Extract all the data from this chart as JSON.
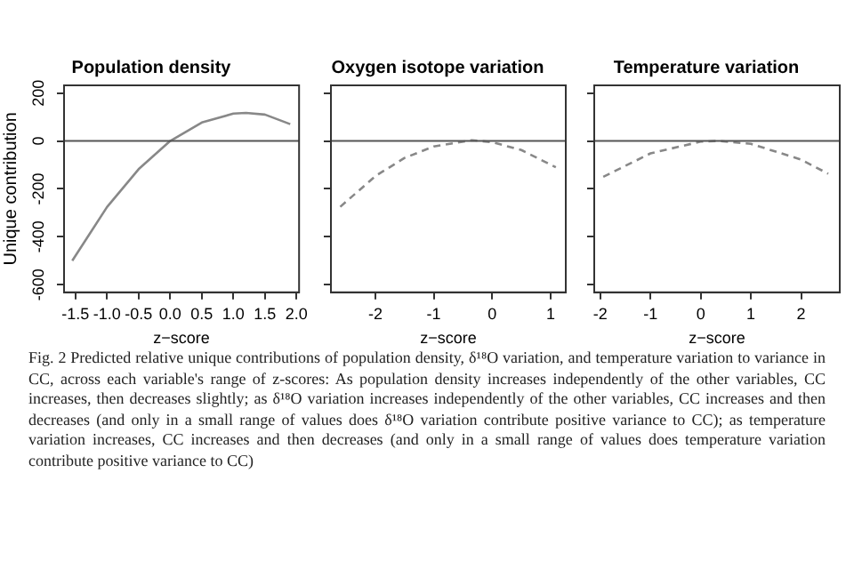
{
  "chart_data": [
    {
      "type": "line",
      "title": "Population density",
      "xlabel": "z−score",
      "ylabel": "Unique contribution",
      "xlim": [
        -1.68,
        2.04
      ],
      "xticks": [
        {
          "value": -1.5,
          "label": "-1.5"
        },
        {
          "value": -1,
          "label": "-1.0"
        },
        {
          "value": -0.5,
          "label": "-0.5"
        },
        {
          "value": 0,
          "label": "0.0"
        },
        {
          "value": 0.5,
          "label": "0.5"
        },
        {
          "value": 1,
          "label": "1.0"
        },
        {
          "value": 1.5,
          "label": "1.5"
        },
        {
          "value": 2,
          "label": "2.0"
        }
      ],
      "ylim": [
        -632,
        232
      ],
      "yticks": [
        -600,
        -400,
        -200,
        0,
        200
      ],
      "line_style": "solid",
      "marker": "none",
      "grid": false,
      "legend": false,
      "ref_lines": [
        {
          "axis": "y",
          "value": 0,
          "color": "#555555"
        }
      ],
      "series": [
        {
          "color": "#888888",
          "x": [
            -1.55,
            -1.0,
            -0.5,
            0,
            0.5,
            1.0,
            1.2,
            1.5,
            1.9
          ],
          "values": [
            -500,
            -276,
            -118,
            0,
            77,
            114,
            117,
            110,
            70
          ]
        }
      ],
      "annotations": [
        "Fig. 2 Predicted relative unique contributions of population density, δ¹⁸O variation, and temperature variation to variance in CC, across each variable's range of z-scores: As population density increases independently of the other variables, CC increases, then decreases slightly; as δ¹⁸O variation increases independently of the other variables, CC increases and then decreases (and only in a small range of values does δ¹⁸O variation contribute positive variance to CC); as temperature variation increases, CC increases and then decreases (and only in a small range of values does temperature variation contribute positive variance to CC)"
      ]
    },
    {
      "type": "line",
      "title": "Oxygen isotope variation",
      "xlabel": "z−score",
      "xlim": [
        -2.76,
        1.26
      ],
      "xticks": [
        -2,
        -1,
        0,
        1
      ],
      "ylim": [
        -632,
        232
      ],
      "yticks": [
        -600,
        -400,
        -200,
        0,
        200
      ],
      "tick_labels": "x",
      "line_style": "dashed",
      "marker": "none",
      "grid": false,
      "legend": false,
      "ref_lines": [
        {
          "axis": "y",
          "value": 0,
          "color": "#555555"
        }
      ],
      "series": [
        {
          "color": "#888888",
          "x": [
            -2.6,
            -2,
            -1.5,
            -1,
            -0.35,
            0,
            0.5,
            1.09
          ],
          "values": [
            -275,
            -147,
            -71,
            -23,
            3,
            -5,
            -38,
            -110
          ]
        }
      ]
    },
    {
      "type": "line",
      "title": "Temperature variation",
      "xlabel": "z−score",
      "xlim": [
        -2.12,
        2.77
      ],
      "xticks": [
        -2,
        -1,
        0,
        1,
        2
      ],
      "ylim": [
        -632,
        232
      ],
      "yticks": [
        -600,
        -400,
        -200,
        0,
        200
      ],
      "tick_labels": "x",
      "line_style": "dashed",
      "marker": "none",
      "grid": false,
      "legend": false,
      "ref_lines": [
        {
          "axis": "y",
          "value": 0,
          "color": "#555555"
        }
      ],
      "series": [
        {
          "color": "#888888",
          "x": [
            -1.94,
            -1,
            0,
            0.35,
            1,
            2,
            2.54
          ],
          "values": [
            -150,
            -52,
            -3,
            0,
            -12,
            -78,
            -137
          ]
        }
      ]
    }
  ]
}
